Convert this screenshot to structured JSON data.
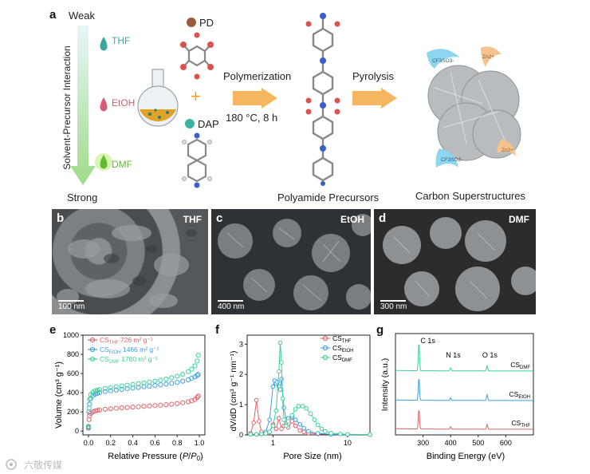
{
  "panel_a": {
    "letter": "a",
    "weak": "Weak",
    "strong": "Strong",
    "axis_label": "Solvent-Precursor Interaction",
    "solvents": [
      {
        "name": "THF",
        "color": "#3aa6a0"
      },
      {
        "name": "EtOH",
        "color": "#d65f74"
      },
      {
        "name": "DMF",
        "color": "#62b832"
      }
    ],
    "pd_label": "PD",
    "dap_label": "DAP",
    "plus": "+",
    "step1": "Polymerization",
    "conditions": "180 °C, 8 h",
    "step2": "Pyrolysis",
    "precursor_label": "Polyamide Precursors",
    "product_label": "Carbon Superstructures",
    "ions": [
      "CF3SO3-",
      "Zn2+",
      "Zn2+",
      "CF3SO3-"
    ]
  },
  "sem": [
    {
      "letter": "b",
      "solvent": "THF",
      "scale": "100 nm"
    },
    {
      "letter": "c",
      "solvent": "EtOH",
      "scale": "400 nm"
    },
    {
      "letter": "d",
      "solvent": "DMF",
      "scale": "300 nm"
    }
  ],
  "panel_e": {
    "letter": "e",
    "xlabel_pre": "Relative Pressure (",
    "xlabel_p": "P",
    "xlabel_slash": "/",
    "xlabel_p0": "P",
    "xlabel_sub": "0",
    "xlabel_post": ")",
    "ylabel": "Volume (cm³ g⁻¹)",
    "legend": [
      {
        "base": "CS",
        "sub": "THF",
        "value": "726  m² g⁻¹"
      },
      {
        "base": "CS",
        "sub": "EtOH",
        "value": "1466 m² g⁻¹"
      },
      {
        "base": "CS",
        "sub": "DMF",
        "value": "1780 m² g⁻¹"
      }
    ]
  },
  "panel_f": {
    "letter": "f",
    "xlabel": "Pore Size (nm)",
    "ylabel": "dV/dD (cm³ g⁻¹ nm⁻¹)",
    "legend": [
      {
        "base": "CS",
        "sub": "THF"
      },
      {
        "base": "CS",
        "sub": "EtOH"
      },
      {
        "base": "CS",
        "sub": "DMF"
      }
    ]
  },
  "panel_g": {
    "letter": "g",
    "xlabel": "Binding Energy (eV)",
    "ylabel": "Intensity (a.u.)",
    "peaks": [
      "C 1s",
      "N 1s",
      "O 1s"
    ],
    "traces": [
      {
        "base": "CS",
        "sub": "DMF"
      },
      {
        "base": "CS",
        "sub": "EtOH"
      },
      {
        "base": "CS",
        "sub": "THF"
      }
    ]
  },
  "watermark": "六敬传媒",
  "chart_data": [
    {
      "type": "scatter",
      "panel": "e",
      "xlabel": "Relative Pressure (P/P0)",
      "ylabel": "Volume (cm3 g-1)",
      "xlim": [
        -0.05,
        1.05
      ],
      "ylim": [
        -40,
        1000
      ],
      "xticks": [
        "0.0",
        "0.2",
        "0.4",
        "0.6",
        "0.8",
        "1.0"
      ],
      "yticks": [
        "0",
        "200",
        "400",
        "600",
        "800",
        "1000"
      ],
      "colors": [
        "#e0626a",
        "#3f9ee0",
        "#3fcf9c"
      ],
      "series": [
        {
          "name": "CS_THF",
          "x": [
            0.0,
            0.005,
            0.01,
            0.02,
            0.04,
            0.06,
            0.08,
            0.1,
            0.15,
            0.2,
            0.25,
            0.3,
            0.35,
            0.4,
            0.45,
            0.5,
            0.55,
            0.6,
            0.65,
            0.7,
            0.75,
            0.8,
            0.85,
            0.9,
            0.93,
            0.96,
            0.98,
            0.99
          ],
          "y": [
            30,
            120,
            160,
            185,
            200,
            210,
            215,
            220,
            228,
            233,
            238,
            242,
            246,
            250,
            254,
            258,
            262,
            266,
            270,
            275,
            280,
            287,
            295,
            305,
            315,
            330,
            350,
            365
          ]
        },
        {
          "name": "CS_EtOH",
          "x": [
            0.0,
            0.005,
            0.01,
            0.02,
            0.04,
            0.06,
            0.08,
            0.1,
            0.15,
            0.2,
            0.25,
            0.3,
            0.35,
            0.4,
            0.45,
            0.5,
            0.55,
            0.6,
            0.65,
            0.7,
            0.75,
            0.8,
            0.85,
            0.9,
            0.93,
            0.96,
            0.98,
            0.99
          ],
          "y": [
            40,
            200,
            280,
            340,
            370,
            385,
            393,
            400,
            412,
            420,
            428,
            435,
            442,
            448,
            455,
            462,
            468,
            475,
            482,
            490,
            498,
            508,
            520,
            535,
            550,
            565,
            580,
            590
          ]
        },
        {
          "name": "CS_DMF",
          "x": [
            0.0,
            0.005,
            0.01,
            0.02,
            0.04,
            0.06,
            0.08,
            0.1,
            0.15,
            0.2,
            0.25,
            0.3,
            0.35,
            0.4,
            0.45,
            0.5,
            0.55,
            0.6,
            0.65,
            0.7,
            0.75,
            0.8,
            0.85,
            0.9,
            0.93,
            0.96,
            0.98,
            0.99
          ],
          "y": [
            50,
            240,
            330,
            380,
            405,
            418,
            426,
            432,
            445,
            455,
            463,
            470,
            478,
            486,
            494,
            502,
            511,
            520,
            530,
            542,
            556,
            572,
            592,
            620,
            645,
            680,
            730,
            790
          ]
        }
      ]
    },
    {
      "type": "line",
      "panel": "f",
      "xlabel": "Pore Size (nm)",
      "ylabel": "dV/dD (cm3 g-1 nm-1)",
      "xscale": "log",
      "xlim": [
        0.45,
        20
      ],
      "ylim": [
        0,
        3.3
      ],
      "xticks": [
        "1",
        "10"
      ],
      "yticks": [
        "0",
        "1",
        "2",
        "3"
      ],
      "colors": [
        "#e0626a",
        "#3f9ee0",
        "#3fcf9c"
      ],
      "series": [
        {
          "name": "CS_THF",
          "x": [
            0.5,
            0.55,
            0.6,
            0.65,
            0.7,
            0.8,
            0.9,
            1.0,
            1.1,
            1.2,
            1.3,
            1.4,
            1.5,
            1.6,
            1.8,
            2.0,
            2.3,
            2.6,
            3.0,
            4,
            6,
            10,
            20
          ],
          "y": [
            0.05,
            0.4,
            1.15,
            0.45,
            0.1,
            0.05,
            0.1,
            0.35,
            0.2,
            0.55,
            0.2,
            0.3,
            0.5,
            0.25,
            0.45,
            0.3,
            0.15,
            0.1,
            0.06,
            0.03,
            0.02,
            0.01,
            0.01
          ]
        },
        {
          "name": "CS_EtOH",
          "x": [
            0.5,
            0.6,
            0.7,
            0.8,
            0.9,
            1.0,
            1.05,
            1.1,
            1.15,
            1.2,
            1.25,
            1.3,
            1.4,
            1.5,
            1.6,
            1.8,
            2.0,
            2.3,
            2.6,
            3.0,
            4,
            6,
            10,
            20
          ],
          "y": [
            0.02,
            0.02,
            0.03,
            0.1,
            0.5,
            1.6,
            1.8,
            1.7,
            1.75,
            1.6,
            1.5,
            1.85,
            0.9,
            0.5,
            0.55,
            0.6,
            0.5,
            0.35,
            0.22,
            0.12,
            0.05,
            0.02,
            0.01,
            0.01
          ]
        },
        {
          "name": "CS_DMF",
          "x": [
            0.5,
            0.6,
            0.7,
            0.8,
            0.9,
            1.0,
            1.1,
            1.2,
            1.25,
            1.3,
            1.35,
            1.4,
            1.5,
            1.6,
            1.8,
            2.0,
            2.2,
            2.5,
            2.8,
            3.2,
            3.6,
            4.0,
            4.5,
            5,
            6,
            8,
            10,
            20
          ],
          "y": [
            0.02,
            0.02,
            0.03,
            0.05,
            0.1,
            0.3,
            0.8,
            2.1,
            3.05,
            2.4,
            1.2,
            0.5,
            0.3,
            0.45,
            0.65,
            0.85,
            0.95,
            0.95,
            0.88,
            0.7,
            0.5,
            0.33,
            0.2,
            0.12,
            0.06,
            0.03,
            0.02,
            0.01
          ]
        }
      ]
    },
    {
      "type": "line",
      "panel": "g",
      "xlabel": "Binding Energy (eV)",
      "ylabel": "Intensity (a.u.)",
      "xlim": [
        200,
        700
      ],
      "xticks": [
        "300",
        "400",
        "500",
        "600"
      ],
      "colors": [
        "#3fcf9c",
        "#3f9ee0",
        "#e0626a"
      ],
      "peaks_ev": {
        "C 1s": 285,
        "N 1s": 400,
        "O 1s": 532
      },
      "series": [
        {
          "name": "CS_DMF",
          "peak_heights": [
            1.0,
            0.1,
            0.18
          ]
        },
        {
          "name": "CS_EtOH",
          "peak_heights": [
            0.8,
            0.09,
            0.2
          ]
        },
        {
          "name": "CS_THF",
          "peak_heights": [
            0.7,
            0.08,
            0.16
          ]
        }
      ]
    }
  ]
}
